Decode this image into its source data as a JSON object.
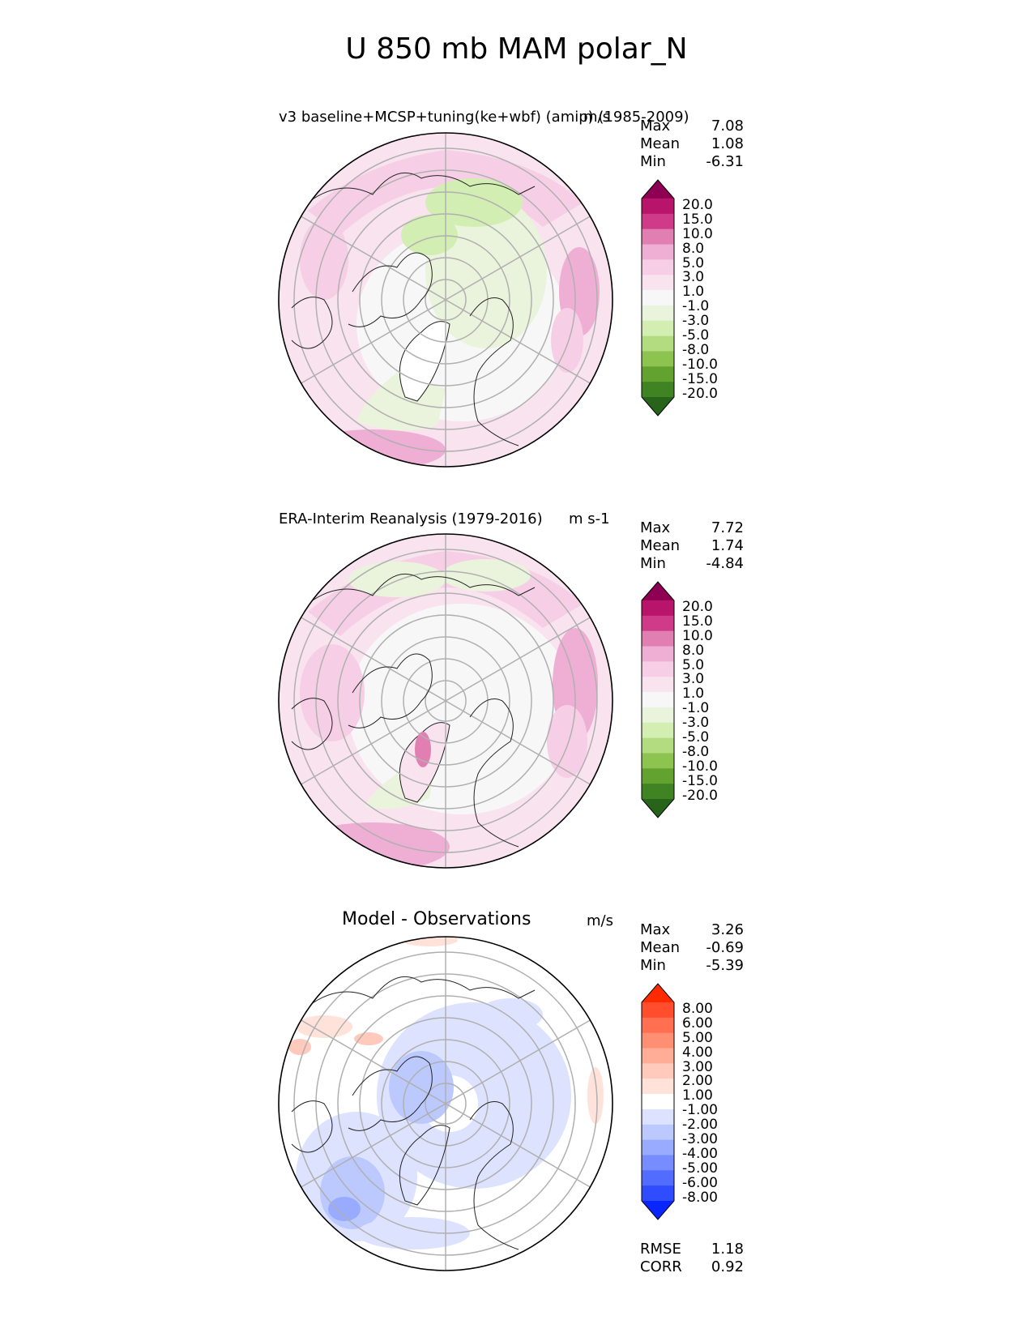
{
  "figure": {
    "title": "U 850 mb MAM polar_N"
  },
  "panels": [
    {
      "id": "test",
      "title": "v3 baseline+MCSP+tuning(ke+wbf) (amip) (1985-2009)",
      "units": "m/s",
      "stats": {
        "max_label": "Max",
        "max": "7.08",
        "mean_label": "Mean",
        "mean": "1.08",
        "min_label": "Min",
        "min": "-6.31"
      },
      "colorbar": {
        "levels": [
          "20.0",
          "15.0",
          "10.0",
          "8.0",
          "5.0",
          "3.0",
          "1.0",
          "-1.0",
          "-3.0",
          "-5.0",
          "-8.0",
          "-10.0",
          "-15.0",
          "-20.0"
        ],
        "colors": [
          "#8e0152",
          "#b8146b",
          "#cf3b89",
          "#e27fb2",
          "#efaed4",
          "#f6cfe6",
          "#f9e3ef",
          "#f7f7f7",
          "#eaf4dc",
          "#d3eeb2",
          "#b3dc81",
          "#8cc44f",
          "#63a22f",
          "#3f8323",
          "#276419"
        ]
      }
    },
    {
      "id": "reference",
      "title": "ERA-Interim Reanalysis (1979-2016)",
      "units": "m s-1",
      "stats": {
        "max_label": "Max",
        "max": "7.72",
        "mean_label": "Mean",
        "mean": "1.74",
        "min_label": "Min",
        "min": "-4.84"
      },
      "colorbar": {
        "levels": [
          "20.0",
          "15.0",
          "10.0",
          "8.0",
          "5.0",
          "3.0",
          "1.0",
          "-1.0",
          "-3.0",
          "-5.0",
          "-8.0",
          "-10.0",
          "-15.0",
          "-20.0"
        ],
        "colors": [
          "#8e0152",
          "#b8146b",
          "#cf3b89",
          "#e27fb2",
          "#efaed4",
          "#f6cfe6",
          "#f9e3ef",
          "#f7f7f7",
          "#eaf4dc",
          "#d3eeb2",
          "#b3dc81",
          "#8cc44f",
          "#63a22f",
          "#3f8323",
          "#276419"
        ]
      }
    },
    {
      "id": "diff",
      "title": "Model - Observations",
      "units": "m/s",
      "stats": {
        "max_label": "Max",
        "max": "3.26",
        "mean_label": "Mean",
        "mean": "-0.69",
        "min_label": "Min",
        "min": "-5.39"
      },
      "metrics": {
        "rmse_label": "RMSE",
        "rmse": "1.18",
        "corr_label": "CORR",
        "corr": "0.92"
      },
      "colorbar": {
        "levels": [
          "8.00",
          "6.00",
          "5.00",
          "4.00",
          "3.00",
          "2.00",
          "1.00",
          "-1.00",
          "-2.00",
          "-3.00",
          "-4.00",
          "-5.00",
          "-6.00",
          "-8.00"
        ],
        "colors": [
          "#ff2a00",
          "#ff4d2e",
          "#ff6f50",
          "#ff8f73",
          "#ffad96",
          "#ffcabb",
          "#ffe3da",
          "#ffffff",
          "#dde3ff",
          "#bcc9ff",
          "#99abff",
          "#768cff",
          "#526cff",
          "#2f4cff",
          "#0a26ff"
        ]
      }
    }
  ]
}
